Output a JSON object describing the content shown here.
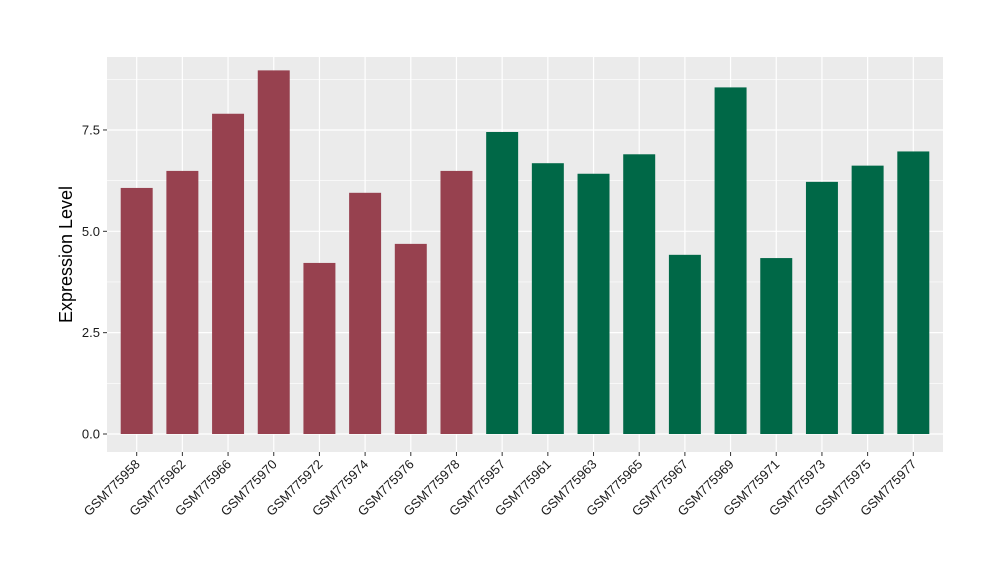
{
  "chart_data": {
    "type": "bar",
    "title": "",
    "xlabel": "",
    "ylabel": "Expression Level",
    "ylim": [
      0,
      9.3
    ],
    "yticks": [
      0.0,
      2.5,
      5.0,
      7.5
    ],
    "ytick_labels": [
      "0.0",
      "2.5",
      "5.0",
      "7.5"
    ],
    "grid": true,
    "legend": "none",
    "categories": [
      "GSM775958",
      "GSM775962",
      "GSM775966",
      "GSM775970",
      "GSM775972",
      "GSM775974",
      "GSM775976",
      "GSM775978",
      "GSM775957",
      "GSM775961",
      "GSM775963",
      "GSM775965",
      "GSM775967",
      "GSM775969",
      "GSM775971",
      "GSM775973",
      "GSM775975",
      "GSM775977"
    ],
    "values": [
      6.07,
      6.49,
      7.9,
      8.97,
      4.22,
      5.95,
      4.69,
      6.49,
      7.45,
      6.68,
      6.42,
      6.9,
      4.42,
      8.55,
      4.34,
      6.22,
      6.62,
      6.97
    ],
    "groups": [
      0,
      0,
      0,
      0,
      0,
      0,
      0,
      0,
      1,
      1,
      1,
      1,
      1,
      1,
      1,
      1,
      1,
      1
    ],
    "colors": [
      "#97414f",
      "#006847"
    ],
    "panel_bg": "#ebebeb",
    "grid_color": "#ffffff"
  }
}
